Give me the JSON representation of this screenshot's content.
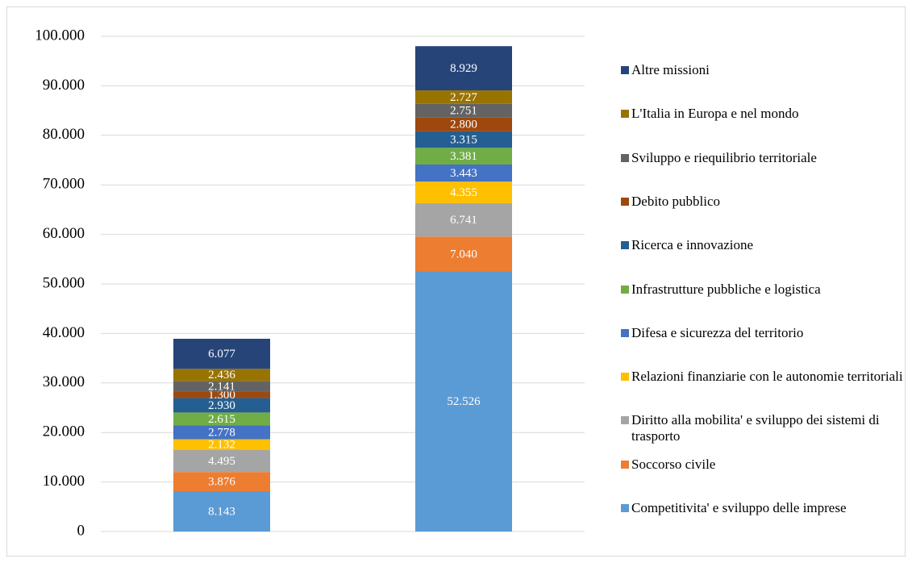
{
  "chart_data": {
    "type": "stacked_bar",
    "categories": [
      null,
      null
    ],
    "series": [
      {
        "name": "Competitivita' e sviluppo delle imprese",
        "color": "#5b9bd5",
        "values": [
          8143,
          52526
        ],
        "value_labels": [
          "8.143",
          "52.526"
        ]
      },
      {
        "name": "Soccorso civile",
        "color": "#ed7d31",
        "values": [
          3876,
          7040
        ],
        "value_labels": [
          "3.876",
          "7.040"
        ]
      },
      {
        "name": "Diritto alla mobilita' e sviluppo dei sistemi di trasporto",
        "color": "#a5a5a5",
        "values": [
          4495,
          6741
        ],
        "value_labels": [
          "4.495",
          "6.741"
        ]
      },
      {
        "name": "Relazioni finanziarie con le autonomie territoriali",
        "color": "#ffc000",
        "values": [
          2132,
          4355
        ],
        "value_labels": [
          "2.132",
          "4.355"
        ]
      },
      {
        "name": "Difesa e sicurezza del territorio",
        "color": "#4472c4",
        "values": [
          2778,
          3443
        ],
        "value_labels": [
          "2.778",
          "3.443"
        ]
      },
      {
        "name": "Infrastrutture pubbliche e logistica",
        "color": "#70ad47",
        "values": [
          2615,
          3381
        ],
        "value_labels": [
          "2.615",
          "3.381"
        ]
      },
      {
        "name": "Ricerca e innovazione",
        "color": "#255e91",
        "values": [
          2930,
          3315
        ],
        "value_labels": [
          "2.930",
          "3.315"
        ]
      },
      {
        "name": "Debito pubblico",
        "color": "#9e480e",
        "values": [
          1300,
          2800
        ],
        "value_labels": [
          "1.300",
          "2.800"
        ]
      },
      {
        "name": "Sviluppo e riequilibrio territoriale",
        "color": "#636363",
        "values": [
          2141,
          2751
        ],
        "value_labels": [
          "2.141",
          "2.751"
        ]
      },
      {
        "name": "L'Italia in Europa e nel mondo",
        "color": "#997300",
        "values": [
          2436,
          2727
        ],
        "value_labels": [
          "2.436",
          "2.727"
        ]
      },
      {
        "name": "Altre missioni",
        "color": "#264478",
        "values": [
          6077,
          8929
        ],
        "value_labels": [
          "6.077",
          "8.929"
        ]
      }
    ],
    "ylim": [
      0,
      100000
    ],
    "yticks": [
      0,
      {
        "value": 10000,
        "label": "10.000"
      },
      {
        "value": 20000,
        "label": "20.000"
      },
      {
        "value": 30000,
        "label": "30.000"
      },
      {
        "value": 40000,
        "label": "40.000"
      },
      {
        "value": 50000,
        "label": "50.000"
      },
      {
        "value": 60000,
        "label": "60.000"
      },
      {
        "value": 70000,
        "label": "70.000"
      },
      {
        "value": 80000,
        "label": "80.000"
      },
      {
        "value": 90000,
        "label": "90.000"
      },
      {
        "value": 100000,
        "label": "100.000"
      }
    ],
    "grid": true,
    "legend": "right"
  }
}
